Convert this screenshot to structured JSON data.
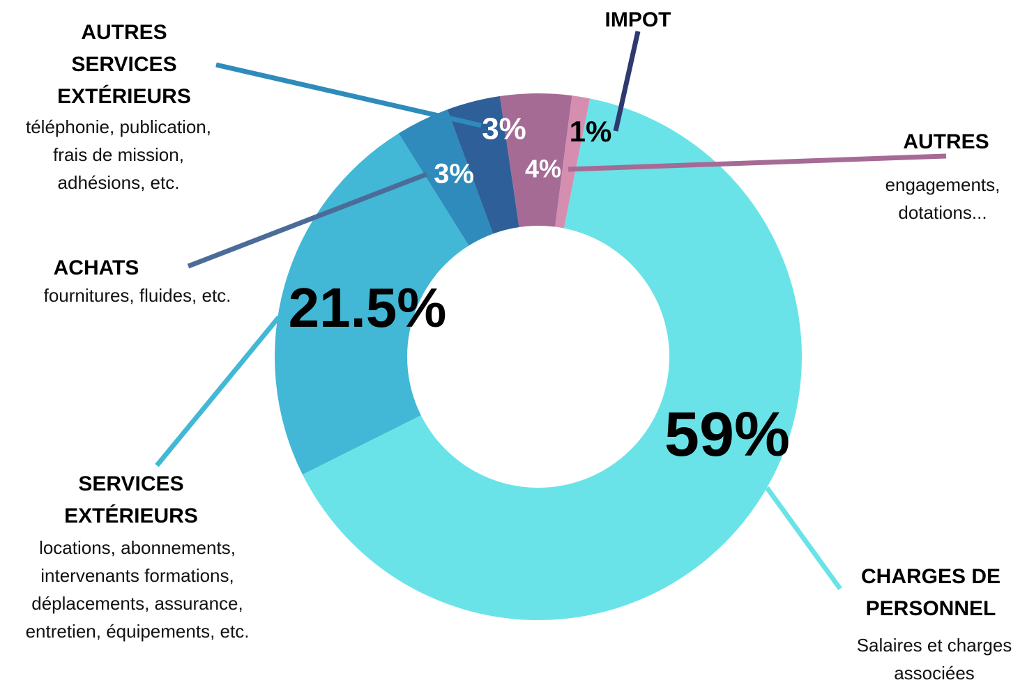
{
  "chart_data": {
    "type": "donut",
    "categories": [
      "CHARGES DE PERSONNEL",
      "SERVICES EXTÉRIEURS",
      "ACHATS",
      "AUTRES SERVICES EXTÉRIEURS",
      "AUTRES",
      "IMPOT"
    ],
    "descriptions": [
      "Salaires et charges associées",
      "locations, abonnements, intervenants formations, déplacements, assurance, entretien, équipements, etc.",
      "fournitures, fluides, etc.",
      "téléphonie, publication, frais de mission, adhésions, etc.",
      "engagements, dotations...",
      null
    ],
    "values": [
      59,
      21.5,
      3,
      3,
      4,
      1
    ],
    "value_labels": [
      "59%",
      "21.5%",
      "3%",
      "3%",
      "4%",
      "1%"
    ],
    "colors": [
      "#6ae3e8",
      "#42b8d6",
      "#2e8bbb",
      "#2e5f99",
      "#a56b95",
      "#d58eb0"
    ]
  }
}
